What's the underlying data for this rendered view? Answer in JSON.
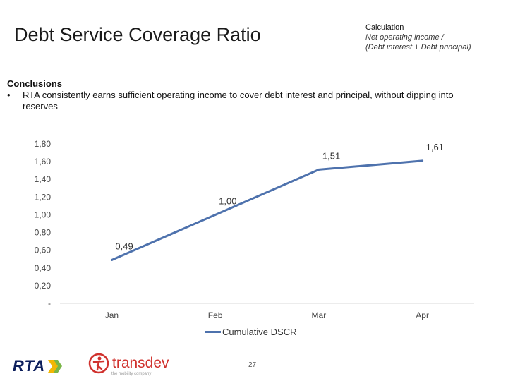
{
  "header": {
    "title": "Debt Service Coverage Ratio",
    "calculation_heading": "Calculation",
    "calculation_line1": "Net operating income /",
    "calculation_line2": "(Debt interest + Debt principal)"
  },
  "conclusions": {
    "heading": "Conclusions",
    "bullet_symbol": "•",
    "bullet_text": "RTA consistently earns sufficient operating income to cover debt interest and principal, without dipping into reserves"
  },
  "chart_data": {
    "type": "line",
    "title": "",
    "xlabel": "",
    "ylabel": "",
    "categories": [
      "Jan",
      "Feb",
      "Mar",
      "Apr"
    ],
    "series": [
      {
        "name": "Cumulative DSCR",
        "values": [
          0.49,
          1.0,
          1.51,
          1.61
        ],
        "data_labels": [
          "0,49",
          "1,00",
          "1,51",
          "1,61"
        ],
        "color": "#4e72ad"
      }
    ],
    "ylim": [
      0,
      1.8
    ],
    "y_ticks": [
      0,
      0.2,
      0.4,
      0.6,
      0.8,
      1.0,
      1.2,
      1.4,
      1.6,
      1.8
    ],
    "y_tick_labels": [
      "-",
      "0,20",
      "0,40",
      "0,60",
      "0,80",
      "1,00",
      "1,20",
      "1,40",
      "1,60",
      "1,80"
    ],
    "grid": false,
    "legend": "bottom-center"
  },
  "footer": {
    "rta_logo_text": "RTA",
    "transdev_logo_text": "transdev",
    "transdev_tagline": "the mobility company",
    "page_number": "27"
  },
  "colors": {
    "series_line": "#4e72ad",
    "axis_line": "#d9d9d9",
    "rta_navy": "#0d1f5c",
    "rta_yellow": "#f2b705",
    "rta_green": "#7ab648",
    "transdev_red": "#d0312d"
  }
}
